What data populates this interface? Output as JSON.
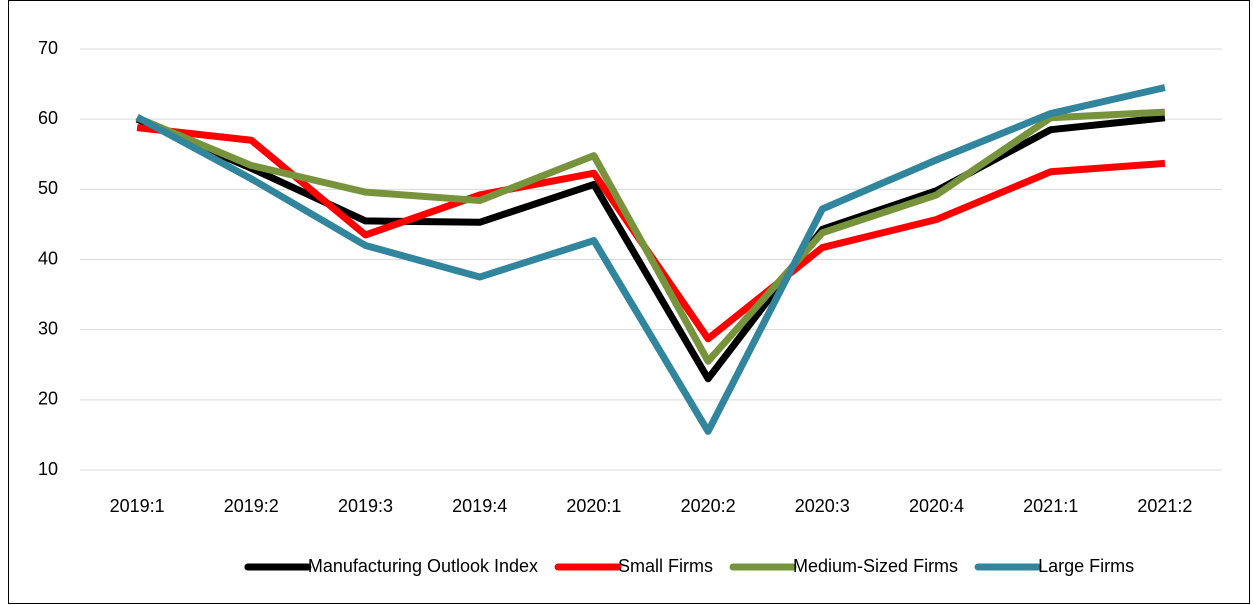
{
  "chart_data": {
    "type": "line",
    "categories": [
      "2019:1",
      "2019:2",
      "2019:3",
      "2019:4",
      "2020:1",
      "2020:2",
      "2020:3",
      "2020:4",
      "2021:1",
      "2021:2"
    ],
    "series": [
      {
        "name": "Manufacturing Outlook Index",
        "color": "#000000",
        "values": [
          60,
          53,
          45.5,
          45.3,
          50.7,
          23,
          44.3,
          49.8,
          58.5,
          60.2
        ]
      },
      {
        "name": "Small Firms",
        "color": "#ff0000",
        "values": [
          58.8,
          57,
          43.5,
          49.2,
          52.3,
          28.7,
          41.7,
          45.7,
          52.5,
          53.7
        ]
      },
      {
        "name": "Medium-Sized Firms",
        "color": "#77933c",
        "values": [
          60.2,
          53.4,
          49.6,
          48.4,
          54.8,
          25.5,
          43.8,
          49.2,
          60.2,
          61
        ]
      },
      {
        "name": "Large Firms",
        "color": "#31859c",
        "values": [
          60.3,
          51.5,
          42,
          37.5,
          42.7,
          15.5,
          47.2,
          54.2,
          60.8,
          64.5
        ]
      }
    ],
    "ylim": [
      10,
      70
    ],
    "yticks": [
      10,
      20,
      30,
      40,
      50,
      60,
      70
    ],
    "grid": true,
    "legend": "bottom"
  }
}
